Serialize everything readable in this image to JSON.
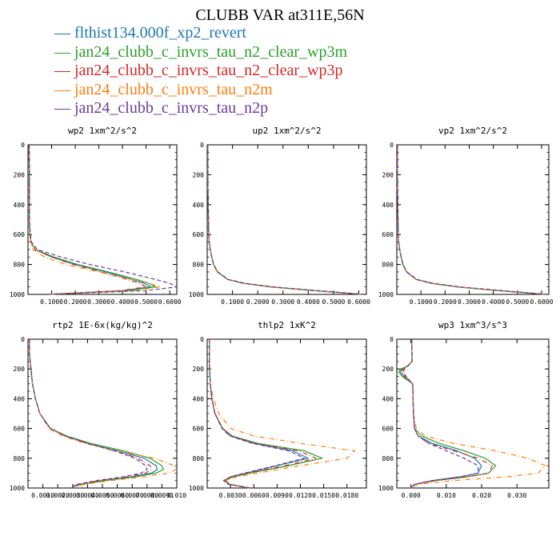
{
  "title": "CLUBB VAR at311E,56N",
  "legend": [
    {
      "name": "flthist134.000f_xp2_revert",
      "color": "#1f77b4",
      "dash": "solid"
    },
    {
      "name": "jan24_clubb_c_invrs_tau_n2_clear_wp3m",
      "color": "#2ca02c",
      "dash": "solid"
    },
    {
      "name": "jan24_clubb_c_invrs_tau_n2_clear_wp3p",
      "color": "#d62728",
      "dash": "dashdot"
    },
    {
      "name": "jan24_clubb_c_invrs_tau_n2m",
      "color": "#ff7f0e",
      "dash": "dashdot"
    },
    {
      "name": "jan24_clubb_c_invrs_tau_n2p",
      "color": "#6a3d9a",
      "dash": "dashed"
    }
  ],
  "chart_data": [
    {
      "type": "line",
      "title": "wp2  1xm^2/s^2",
      "ylim": [
        1000,
        0
      ],
      "xlim": [
        0.0,
        0.63
      ],
      "yticks": [
        "0",
        "200",
        "400",
        "600",
        "800",
        "1000"
      ],
      "xticks": [
        "0.1000",
        "0.2000",
        "0.3000",
        "0.4000",
        "0.5000",
        "0.6000"
      ],
      "y": [
        0,
        100,
        200,
        300,
        400,
        500,
        600,
        650,
        700,
        750,
        800,
        850,
        900,
        925,
        950,
        975,
        1000
      ],
      "series": [
        {
          "name": "flthist134.000f_xp2_revert",
          "values": [
            0.005,
            0.005,
            0.006,
            0.006,
            0.006,
            0.006,
            0.008,
            0.012,
            0.03,
            0.1,
            0.2,
            0.33,
            0.44,
            0.49,
            0.52,
            0.4,
            0.08
          ]
        },
        {
          "name": "jan24_clubb_c_invrs_tau_n2_clear_wp3m",
          "values": [
            0.005,
            0.005,
            0.006,
            0.006,
            0.006,
            0.006,
            0.008,
            0.012,
            0.03,
            0.11,
            0.21,
            0.34,
            0.46,
            0.51,
            0.54,
            0.42,
            0.08
          ]
        },
        {
          "name": "jan24_clubb_c_invrs_tau_n2_clear_wp3p",
          "values": [
            0.005,
            0.005,
            0.006,
            0.006,
            0.006,
            0.006,
            0.008,
            0.012,
            0.03,
            0.1,
            0.19,
            0.31,
            0.42,
            0.47,
            0.5,
            0.39,
            0.08
          ]
        },
        {
          "name": "jan24_clubb_c_invrs_tau_n2m",
          "values": [
            0.005,
            0.005,
            0.006,
            0.006,
            0.006,
            0.006,
            0.008,
            0.012,
            0.02,
            0.07,
            0.16,
            0.3,
            0.44,
            0.51,
            0.56,
            0.45,
            0.08
          ]
        },
        {
          "name": "jan24_clubb_c_invrs_tau_n2p",
          "values": [
            0.005,
            0.005,
            0.006,
            0.006,
            0.006,
            0.006,
            0.01,
            0.015,
            0.04,
            0.14,
            0.26,
            0.41,
            0.54,
            0.6,
            0.63,
            0.5,
            0.08
          ]
        }
      ]
    },
    {
      "type": "line",
      "title": "up2  1xm^2/s^2",
      "ylim": [
        1000,
        0
      ],
      "xlim": [
        0.0,
        0.63
      ],
      "yticks": [
        "0",
        "200",
        "400",
        "600",
        "800",
        "1000"
      ],
      "xticks": [
        "0.1000",
        "0.2000",
        "0.3000",
        "0.4000",
        "0.5000",
        "0.6000"
      ],
      "y": [
        0,
        100,
        200,
        300,
        400,
        500,
        600,
        650,
        700,
        750,
        800,
        850,
        900,
        925,
        950,
        975,
        1000
      ],
      "series": [
        {
          "name": "flthist134.000f_xp2_revert",
          "values": [
            0.003,
            0.003,
            0.003,
            0.003,
            0.004,
            0.005,
            0.006,
            0.008,
            0.012,
            0.018,
            0.025,
            0.04,
            0.08,
            0.14,
            0.25,
            0.42,
            0.62
          ]
        },
        {
          "name": "jan24_clubb_c_invrs_tau_n2_clear_wp3m",
          "values": [
            0.003,
            0.003,
            0.003,
            0.003,
            0.004,
            0.005,
            0.006,
            0.008,
            0.012,
            0.018,
            0.025,
            0.04,
            0.08,
            0.14,
            0.25,
            0.42,
            0.62
          ]
        },
        {
          "name": "jan24_clubb_c_invrs_tau_n2_clear_wp3p",
          "values": [
            0.003,
            0.003,
            0.003,
            0.003,
            0.004,
            0.005,
            0.006,
            0.008,
            0.012,
            0.018,
            0.026,
            0.041,
            0.082,
            0.145,
            0.255,
            0.43,
            0.62
          ]
        },
        {
          "name": "jan24_clubb_c_invrs_tau_n2m",
          "values": [
            0.003,
            0.003,
            0.003,
            0.003,
            0.004,
            0.005,
            0.006,
            0.008,
            0.012,
            0.018,
            0.025,
            0.04,
            0.08,
            0.14,
            0.25,
            0.42,
            0.62
          ]
        },
        {
          "name": "jan24_clubb_c_invrs_tau_n2p",
          "values": [
            0.003,
            0.003,
            0.003,
            0.003,
            0.004,
            0.005,
            0.006,
            0.008,
            0.012,
            0.018,
            0.026,
            0.042,
            0.084,
            0.148,
            0.26,
            0.44,
            0.62
          ]
        }
      ]
    },
    {
      "type": "line",
      "title": "vp2  1xm^2/s^2",
      "ylim": [
        1000,
        0
      ],
      "xlim": [
        0.0,
        0.63
      ],
      "yticks": [
        "0",
        "200",
        "400",
        "600",
        "800",
        "1000"
      ],
      "xticks": [
        "0.1000",
        "0.2000",
        "0.3000",
        "0.4000",
        "0.5000",
        "0.6000"
      ],
      "y": [
        0,
        100,
        200,
        300,
        400,
        500,
        600,
        650,
        700,
        750,
        800,
        850,
        900,
        925,
        950,
        975,
        1000
      ],
      "series": [
        {
          "name": "flthist134.000f_xp2_revert",
          "values": [
            0.003,
            0.003,
            0.003,
            0.003,
            0.004,
            0.005,
            0.006,
            0.008,
            0.012,
            0.018,
            0.025,
            0.04,
            0.08,
            0.14,
            0.25,
            0.42,
            0.62
          ]
        },
        {
          "name": "jan24_clubb_c_invrs_tau_n2_clear_wp3m",
          "values": [
            0.003,
            0.003,
            0.003,
            0.003,
            0.004,
            0.005,
            0.006,
            0.008,
            0.012,
            0.018,
            0.025,
            0.04,
            0.08,
            0.14,
            0.25,
            0.42,
            0.62
          ]
        },
        {
          "name": "jan24_clubb_c_invrs_tau_n2_clear_wp3p",
          "values": [
            0.003,
            0.003,
            0.003,
            0.003,
            0.004,
            0.005,
            0.006,
            0.008,
            0.012,
            0.018,
            0.026,
            0.041,
            0.082,
            0.145,
            0.255,
            0.43,
            0.62
          ]
        },
        {
          "name": "jan24_clubb_c_invrs_tau_n2m",
          "values": [
            0.003,
            0.003,
            0.003,
            0.003,
            0.004,
            0.005,
            0.006,
            0.008,
            0.012,
            0.018,
            0.025,
            0.04,
            0.08,
            0.14,
            0.25,
            0.42,
            0.62
          ]
        },
        {
          "name": "jan24_clubb_c_invrs_tau_n2p",
          "values": [
            0.003,
            0.003,
            0.003,
            0.003,
            0.004,
            0.005,
            0.006,
            0.008,
            0.012,
            0.018,
            0.026,
            0.042,
            0.084,
            0.148,
            0.26,
            0.44,
            0.62
          ]
        }
      ]
    },
    {
      "type": "line",
      "title": "rtp2  1E-6x(kg/kg)^2",
      "ylim": [
        1000,
        0
      ],
      "xlim": [
        0.0,
        0.01
      ],
      "yticks": [
        "0",
        "200",
        "400",
        "600",
        "800",
        "1000"
      ],
      "xticks": [
        "0.0010",
        "0.0020",
        "0.0030",
        "0.0040",
        "0.0050",
        "0.0060",
        "0.0070",
        "0.0080",
        "0.0090",
        "0.010"
      ],
      "y": [
        0,
        100,
        200,
        300,
        400,
        500,
        600,
        650,
        700,
        750,
        800,
        850,
        875,
        900,
        925,
        950,
        975,
        990
      ],
      "series": [
        {
          "name": "flthist134.000f_xp2_revert",
          "values": [
            0.0001,
            0.0001,
            0.0002,
            0.0003,
            0.0005,
            0.0008,
            0.0015,
            0.0025,
            0.004,
            0.006,
            0.0078,
            0.0086,
            0.0087,
            0.0083,
            0.007,
            0.005,
            0.0035,
            0.003
          ]
        },
        {
          "name": "jan24_clubb_c_invrs_tau_n2_clear_wp3m",
          "values": [
            0.0001,
            0.0001,
            0.0002,
            0.0003,
            0.0005,
            0.0008,
            0.0015,
            0.0026,
            0.0042,
            0.0064,
            0.0082,
            0.009,
            0.0091,
            0.0086,
            0.0072,
            0.0052,
            0.0036,
            0.0031
          ]
        },
        {
          "name": "jan24_clubb_c_invrs_tau_n2_clear_wp3p",
          "values": [
            0.0001,
            0.0001,
            0.0002,
            0.0003,
            0.0005,
            0.0008,
            0.0015,
            0.0025,
            0.004,
            0.0058,
            0.0074,
            0.0082,
            0.0083,
            0.0079,
            0.0067,
            0.0048,
            0.0034,
            0.003
          ]
        },
        {
          "name": "jan24_clubb_c_invrs_tau_n2m",
          "values": [
            0.0001,
            0.0001,
            0.0002,
            0.0003,
            0.0005,
            0.0008,
            0.0014,
            0.0023,
            0.0038,
            0.006,
            0.0085,
            0.0098,
            0.01,
            0.0094,
            0.0078,
            0.0056,
            0.0038,
            0.0032
          ]
        },
        {
          "name": "jan24_clubb_c_invrs_tau_n2p",
          "values": [
            0.0001,
            0.0001,
            0.0002,
            0.0003,
            0.0005,
            0.0008,
            0.0015,
            0.0025,
            0.004,
            0.0058,
            0.0072,
            0.0079,
            0.008,
            0.0076,
            0.0064,
            0.0046,
            0.0033,
            0.003
          ]
        }
      ]
    },
    {
      "type": "line",
      "title": "thlp2  1xK^2",
      "ylim": [
        1000,
        0
      ],
      "xlim": [
        0.0,
        0.0205
      ],
      "yticks": [
        "0",
        "200",
        "400",
        "600",
        "800",
        "1000"
      ],
      "xticks": [
        "0.0030",
        "0.0060",
        "0.0090",
        "0.0120",
        "0.0150",
        "0.0180"
      ],
      "y": [
        0,
        100,
        200,
        300,
        400,
        500,
        600,
        650,
        700,
        750,
        800,
        850,
        900,
        925,
        950,
        975,
        1000
      ],
      "series": [
        {
          "name": "flthist134.000f_xp2_revert",
          "values": [
            0.0003,
            0.0003,
            0.0003,
            0.0004,
            0.0006,
            0.001,
            0.002,
            0.003,
            0.006,
            0.011,
            0.013,
            0.009,
            0.005,
            0.003,
            0.0022,
            0.0028,
            0.0055
          ]
        },
        {
          "name": "jan24_clubb_c_invrs_tau_n2_clear_wp3m",
          "values": [
            0.0003,
            0.0003,
            0.0003,
            0.0004,
            0.0006,
            0.001,
            0.002,
            0.0032,
            0.0065,
            0.0125,
            0.0148,
            0.0105,
            0.0055,
            0.0033,
            0.0023,
            0.0029,
            0.0055
          ]
        },
        {
          "name": "jan24_clubb_c_invrs_tau_n2_clear_wp3p",
          "values": [
            0.0003,
            0.0003,
            0.0003,
            0.0004,
            0.0006,
            0.001,
            0.002,
            0.0031,
            0.0062,
            0.0118,
            0.014,
            0.01,
            0.0052,
            0.0032,
            0.0022,
            0.0028,
            0.0055
          ]
        },
        {
          "name": "jan24_clubb_c_invrs_tau_n2m",
          "values": [
            0.0003,
            0.0003,
            0.0003,
            0.0004,
            0.0008,
            0.0015,
            0.003,
            0.006,
            0.012,
            0.019,
            0.018,
            0.012,
            0.0065,
            0.0038,
            0.0024,
            0.003,
            0.0055
          ]
        },
        {
          "name": "jan24_clubb_c_invrs_tau_n2p",
          "values": [
            0.0003,
            0.0003,
            0.0003,
            0.0004,
            0.0006,
            0.001,
            0.0019,
            0.0029,
            0.0058,
            0.0105,
            0.0125,
            0.0088,
            0.0048,
            0.003,
            0.0021,
            0.0027,
            0.0055
          ]
        }
      ]
    },
    {
      "type": "line",
      "title": "wp3  1xm^3/s^3",
      "ylim": [
        1000,
        0
      ],
      "xlim": [
        -0.004,
        0.039
      ],
      "yticks": [
        "0",
        "200",
        "400",
        "600",
        "800",
        "1000"
      ],
      "xticks": [
        "0.000",
        "0.010",
        "0.020",
        "0.030"
      ],
      "y": [
        0,
        100,
        150,
        180,
        200,
        220,
        250,
        300,
        400,
        500,
        600,
        650,
        700,
        750,
        800,
        850,
        900,
        925,
        950,
        975,
        1000
      ],
      "series": [
        {
          "name": "flthist134.000f_xp2_revert",
          "values": [
            0.0002,
            0.0003,
            0.0003,
            -0.001,
            -0.0025,
            -0.003,
            -0.002,
            0.0005,
            0.0006,
            0.0007,
            0.001,
            0.002,
            0.006,
            0.013,
            0.018,
            0.02,
            0.019,
            0.014,
            0.006,
            0.001,
            0.0
          ]
        },
        {
          "name": "jan24_clubb_c_invrs_tau_n2_clear_wp3m",
          "values": [
            0.0002,
            0.0003,
            0.0003,
            -0.001,
            -0.0028,
            -0.0035,
            -0.0025,
            0.0005,
            0.0006,
            0.0007,
            0.001,
            0.003,
            0.008,
            0.015,
            0.021,
            0.024,
            0.022,
            0.016,
            0.007,
            0.001,
            0.0
          ]
        },
        {
          "name": "jan24_clubb_c_invrs_tau_n2_clear_wp3p",
          "values": [
            0.0002,
            0.0003,
            0.0003,
            -0.001,
            -0.0022,
            -0.0028,
            -0.0018,
            0.0005,
            0.0006,
            0.0007,
            0.001,
            0.002,
            0.005,
            0.012,
            0.019,
            0.023,
            0.022,
            0.016,
            0.007,
            0.001,
            0.0
          ]
        },
        {
          "name": "jan24_clubb_c_invrs_tau_n2m",
          "values": [
            0.0002,
            0.0003,
            0.0003,
            -0.0008,
            -0.002,
            -0.0025,
            -0.0015,
            0.0005,
            0.0006,
            0.0007,
            0.0015,
            0.004,
            0.012,
            0.024,
            0.033,
            0.038,
            0.036,
            0.027,
            0.012,
            0.002,
            0.0
          ]
        },
        {
          "name": "jan24_clubb_c_invrs_tau_n2p",
          "values": [
            0.0002,
            0.0003,
            0.0003,
            -0.0008,
            -0.0018,
            -0.0022,
            -0.0014,
            0.0005,
            0.0006,
            0.0007,
            0.001,
            0.002,
            0.005,
            0.01,
            0.015,
            0.019,
            0.019,
            0.014,
            0.006,
            0.001,
            0.0
          ]
        }
      ]
    }
  ]
}
